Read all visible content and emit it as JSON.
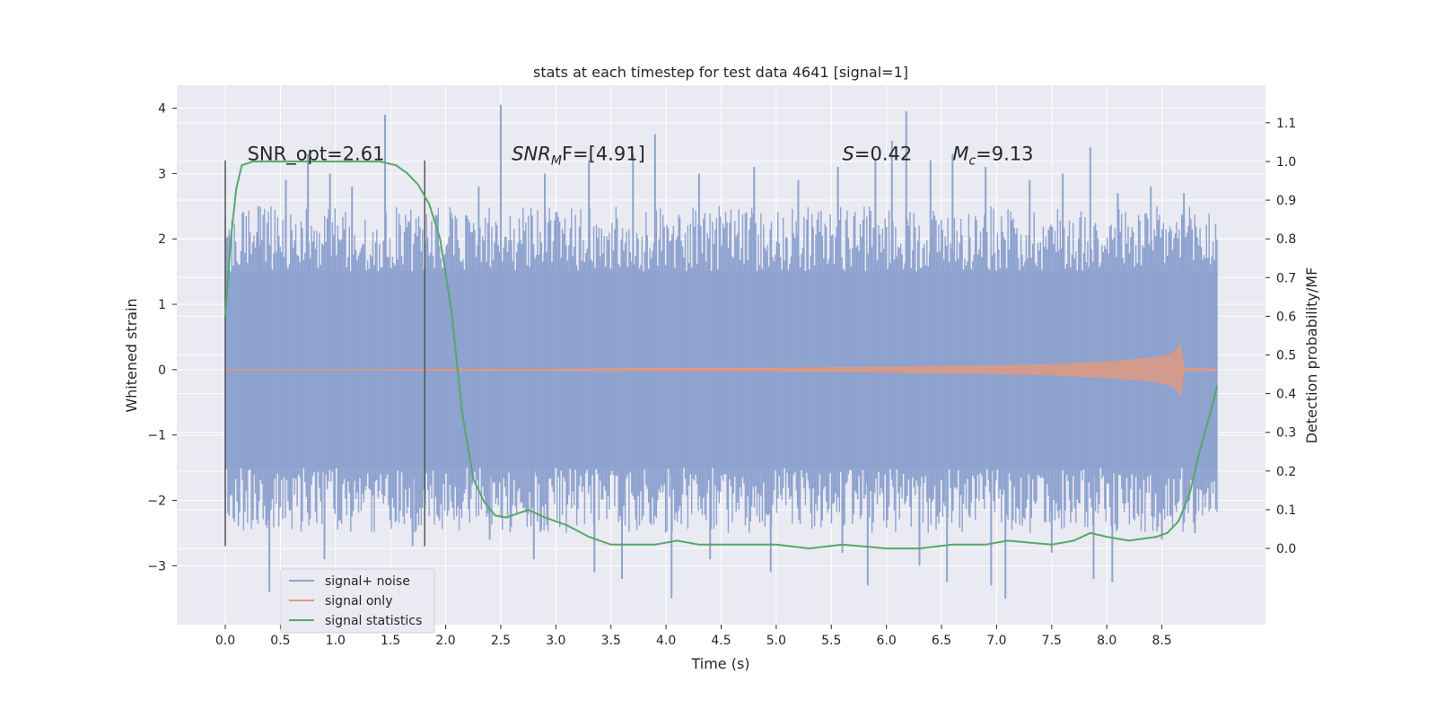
{
  "chart_data": {
    "type": "line",
    "title": "stats at each timestep for test data 4641 [signal=1]",
    "xlabel": "Time (s)",
    "ylabel_left": "Whitened strain",
    "ylabel_right": "Detection probability/MF",
    "xlim": [
      -0.44,
      9.44
    ],
    "ylim_left": [
      -3.9,
      4.35
    ],
    "ylim_right": [
      -0.197,
      1.197
    ],
    "xticks": [
      0.0,
      0.5,
      1.0,
      1.5,
      2.0,
      2.5,
      3.0,
      3.5,
      4.0,
      4.5,
      5.0,
      5.5,
      6.0,
      6.5,
      7.0,
      7.5,
      8.0,
      8.5
    ],
    "xtick_labels": [
      "0.0",
      "0.5",
      "1.0",
      "1.5",
      "2.0",
      "2.5",
      "3.0",
      "3.5",
      "4.0",
      "4.5",
      "5.0",
      "5.5",
      "6.0",
      "6.5",
      "7.0",
      "7.5",
      "8.0",
      "8.5"
    ],
    "yticks_left": [
      -3,
      -2,
      -1,
      0,
      1,
      2,
      3,
      4
    ],
    "ytick_labels_left": [
      "−3",
      "−2",
      "−1",
      "0",
      "1",
      "2",
      "3",
      "4"
    ],
    "yticks_right": [
      0.0,
      0.1,
      0.2,
      0.3,
      0.4,
      0.5,
      0.6,
      0.7,
      0.8,
      0.9,
      1.0,
      1.1
    ],
    "ytick_labels_right": [
      "0.0",
      "0.1",
      "0.2",
      "0.3",
      "0.4",
      "0.5",
      "0.6",
      "0.7",
      "0.8",
      "0.9",
      "1.0",
      "1.1"
    ],
    "grid": true,
    "legend_position": "lower-left",
    "annotations": [
      {
        "prefix": "SNR_opt=2.61",
        "italic": "",
        "sub": "",
        "suffix": "",
        "x": 0.2
      },
      {
        "prefix": "",
        "italic": "SNR",
        "sub": "M",
        "suffix": "F=[4.91]",
        "x": 2.6
      },
      {
        "prefix": "",
        "italic": "S",
        "sub": "",
        "suffix": "=0.42",
        "x": 5.6
      },
      {
        "prefix": "",
        "italic": "M",
        "sub": "c",
        "suffix": "=9.13",
        "x": 6.6
      }
    ],
    "annotation_y": 3.3,
    "vlines": [
      {
        "x": 0.0,
        "ymin": -2.7,
        "ymax": 3.2
      },
      {
        "x": 1.81,
        "ymin": -2.7,
        "ymax": 3.2
      }
    ],
    "series": [
      {
        "name": "signal+ noise",
        "axis": "left",
        "color": "#8ea3cf",
        "x_range": [
          0.0,
          9.0
        ],
        "body_range": [
          -1.5,
          1.5
        ],
        "peaks": [
          {
            "x": 0.3,
            "y": 2.5
          },
          {
            "x": 0.55,
            "y": 2.9
          },
          {
            "x": 0.75,
            "y": 3.3
          },
          {
            "x": 0.95,
            "y": 3.0
          },
          {
            "x": 1.15,
            "y": 2.8
          },
          {
            "x": 1.45,
            "y": 3.9
          },
          {
            "x": 2.3,
            "y": 2.8
          },
          {
            "x": 2.5,
            "y": 4.05
          },
          {
            "x": 2.9,
            "y": 3.0
          },
          {
            "x": 3.3,
            "y": 3.2
          },
          {
            "x": 3.7,
            "y": 3.3
          },
          {
            "x": 3.9,
            "y": 3.6
          },
          {
            "x": 4.3,
            "y": 3.0
          },
          {
            "x": 4.8,
            "y": 3.1
          },
          {
            "x": 5.2,
            "y": 2.9
          },
          {
            "x": 5.56,
            "y": 3.1
          },
          {
            "x": 5.9,
            "y": 3.2
          },
          {
            "x": 6.05,
            "y": 3.5
          },
          {
            "x": 6.18,
            "y": 3.95
          },
          {
            "x": 6.4,
            "y": 3.2
          },
          {
            "x": 6.6,
            "y": 3.3
          },
          {
            "x": 6.9,
            "y": 3.1
          },
          {
            "x": 7.3,
            "y": 2.9
          },
          {
            "x": 7.6,
            "y": 3.0
          },
          {
            "x": 7.85,
            "y": 3.4
          },
          {
            "x": 8.1,
            "y": 2.7
          },
          {
            "x": 8.4,
            "y": 2.8
          },
          {
            "x": 8.7,
            "y": 2.7
          }
        ],
        "troughs": [
          {
            "x": 0.25,
            "y": -2.3
          },
          {
            "x": 0.4,
            "y": -3.4
          },
          {
            "x": 0.9,
            "y": -2.9
          },
          {
            "x": 1.7,
            "y": -2.7
          },
          {
            "x": 2.4,
            "y": -2.6
          },
          {
            "x": 2.8,
            "y": -2.9
          },
          {
            "x": 3.35,
            "y": -3.1
          },
          {
            "x": 3.6,
            "y": -3.2
          },
          {
            "x": 4.05,
            "y": -3.5
          },
          {
            "x": 4.4,
            "y": -2.9
          },
          {
            "x": 4.95,
            "y": -3.1
          },
          {
            "x": 5.6,
            "y": -2.8
          },
          {
            "x": 5.83,
            "y": -3.3
          },
          {
            "x": 6.3,
            "y": -3.0
          },
          {
            "x": 6.55,
            "y": -3.25
          },
          {
            "x": 6.95,
            "y": -3.3
          },
          {
            "x": 7.08,
            "y": -3.5
          },
          {
            "x": 7.5,
            "y": -2.8
          },
          {
            "x": 7.88,
            "y": -3.2
          },
          {
            "x": 8.05,
            "y": -3.25
          },
          {
            "x": 8.5,
            "y": -2.6
          },
          {
            "x": 8.8,
            "y": -2.5
          }
        ]
      },
      {
        "name": "signal only",
        "axis": "left",
        "color": "#dd9a82",
        "x": [
          0.0,
          1.0,
          2.0,
          3.0,
          4.0,
          5.0,
          5.5,
          6.0,
          6.5,
          7.0,
          7.5,
          8.0,
          8.3,
          8.5,
          8.6,
          8.67,
          8.7,
          9.0
        ],
        "envelope": [
          0.0,
          0.0,
          0.01,
          0.01,
          0.02,
          0.02,
          0.03,
          0.04,
          0.05,
          0.06,
          0.08,
          0.12,
          0.16,
          0.2,
          0.25,
          0.38,
          0.02,
          0.01
        ]
      },
      {
        "name": "signal statistics",
        "axis": "right",
        "color": "#55a868",
        "x": [
          0.0,
          0.05,
          0.1,
          0.15,
          0.25,
          0.4,
          0.6,
          0.8,
          1.0,
          1.2,
          1.4,
          1.55,
          1.65,
          1.75,
          1.85,
          1.95,
          2.05,
          2.15,
          2.25,
          2.35,
          2.45,
          2.55,
          2.65,
          2.75,
          2.9,
          3.1,
          3.3,
          3.5,
          3.7,
          3.9,
          4.1,
          4.3,
          4.6,
          5.0,
          5.3,
          5.6,
          6.0,
          6.3,
          6.6,
          6.9,
          7.1,
          7.3,
          7.5,
          7.7,
          7.85,
          8.0,
          8.2,
          8.45,
          8.55,
          8.65,
          8.75,
          8.85,
          8.95,
          9.0
        ],
        "y": [
          0.6,
          0.8,
          0.93,
          0.99,
          1.0,
          1.0,
          1.0,
          1.0,
          1.0,
          1.0,
          1.0,
          0.99,
          0.97,
          0.94,
          0.89,
          0.8,
          0.62,
          0.35,
          0.18,
          0.12,
          0.085,
          0.08,
          0.09,
          0.1,
          0.08,
          0.06,
          0.03,
          0.01,
          0.01,
          0.01,
          0.02,
          0.01,
          0.01,
          0.01,
          0.0,
          0.01,
          0.0,
          0.0,
          0.01,
          0.01,
          0.02,
          0.015,
          0.01,
          0.02,
          0.04,
          0.03,
          0.02,
          0.03,
          0.04,
          0.07,
          0.14,
          0.26,
          0.36,
          0.42
        ]
      }
    ]
  }
}
